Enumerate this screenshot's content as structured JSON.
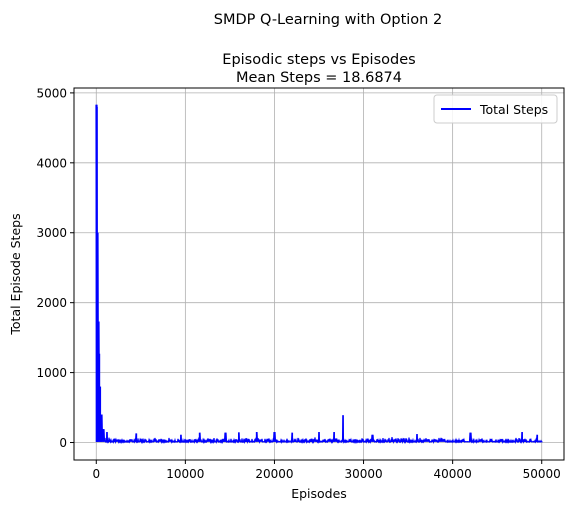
{
  "chart_data": {
    "type": "line",
    "suptitle": "SMDP Q-Learning with Option 2",
    "title_line1": "Episodic steps vs Episodes",
    "title_line2": "Mean Steps = 18.6874",
    "xlabel": "Episodes",
    "ylabel": "Total Episode Steps",
    "xlim": [
      -2500,
      52500
    ],
    "ylim": [
      -250,
      5070
    ],
    "xticks": [
      0,
      10000,
      20000,
      30000,
      40000,
      50000
    ],
    "xtick_labels": [
      "0",
      "10000",
      "20000",
      "30000",
      "40000",
      "50000"
    ],
    "yticks": [
      0,
      1000,
      2000,
      3000,
      4000,
      5000
    ],
    "ytick_labels": [
      "0",
      "1000",
      "2000",
      "3000",
      "4000",
      "5000"
    ],
    "grid": true,
    "legend_position": "top-right",
    "series": [
      {
        "name": "Total Steps",
        "color": "#0000ff",
        "baseline_min": 10,
        "baseline_typical_max": 80,
        "spikes": [
          {
            "x": 30,
            "y": 4830
          },
          {
            "x": 80,
            "y": 4800
          },
          {
            "x": 150,
            "y": 3000
          },
          {
            "x": 250,
            "y": 1730
          },
          {
            "x": 350,
            "y": 1270
          },
          {
            "x": 450,
            "y": 800
          },
          {
            "x": 600,
            "y": 400
          },
          {
            "x": 800,
            "y": 190
          },
          {
            "x": 1200,
            "y": 150
          },
          {
            "x": 4500,
            "y": 130
          },
          {
            "x": 9500,
            "y": 110
          },
          {
            "x": 11600,
            "y": 140
          },
          {
            "x": 14500,
            "y": 140
          },
          {
            "x": 16000,
            "y": 145
          },
          {
            "x": 18000,
            "y": 150
          },
          {
            "x": 20000,
            "y": 150
          },
          {
            "x": 22000,
            "y": 140
          },
          {
            "x": 25000,
            "y": 150
          },
          {
            "x": 26700,
            "y": 150
          },
          {
            "x": 27700,
            "y": 390
          },
          {
            "x": 31000,
            "y": 110
          },
          {
            "x": 36000,
            "y": 120
          },
          {
            "x": 42000,
            "y": 140
          },
          {
            "x": 47800,
            "y": 150
          },
          {
            "x": 49500,
            "y": 110
          }
        ]
      }
    ]
  }
}
